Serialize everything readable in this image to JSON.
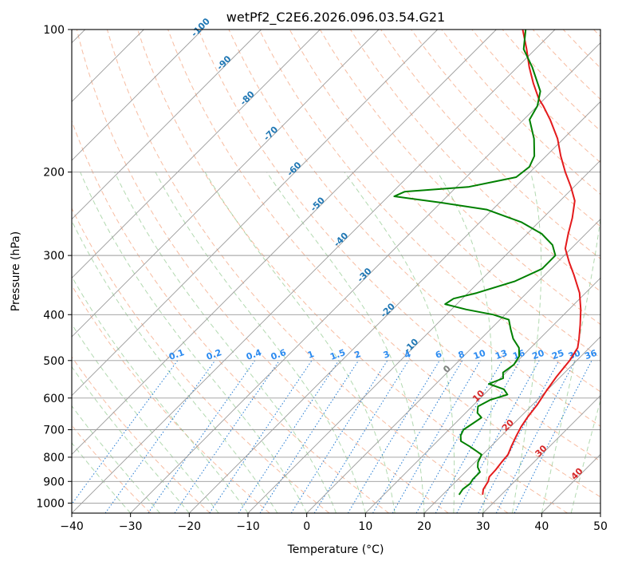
{
  "chart_data": {
    "type": "line",
    "title": "wetPf2_C2E6.2026.096.03.54.G21",
    "xlabel": "Temperature (°C)",
    "ylabel": "Pressure (hPa)",
    "xlim": [
      -40,
      50
    ],
    "ylim": [
      1050,
      100
    ],
    "y_scale": "log",
    "grid": true,
    "x_ticks": [
      "−40",
      "−30",
      "−20",
      "−10",
      "0",
      "10",
      "20",
      "30",
      "40",
      "50"
    ],
    "y_ticks": [
      "100",
      "200",
      "300",
      "400",
      "500",
      "600",
      "700",
      "800",
      "900",
      "1000"
    ],
    "dry_adiabat_labels": [
      "-100",
      "-90",
      "-80",
      "-70",
      "-60",
      "-50",
      "-40",
      "-30",
      "-20",
      "-10",
      "0",
      "10",
      "20",
      "30",
      "40"
    ],
    "mixing_ratio_labels": [
      "0.1",
      "0.2",
      "0.4",
      "0.6",
      "1",
      "1.5",
      "2",
      "3",
      "4",
      "6",
      "8",
      "10",
      "13",
      "16",
      "20",
      "25",
      "30",
      "36"
    ],
    "series": [
      {
        "name": "",
        "color": "#e41a1c",
        "points": [
          {
            "p": 960,
            "t": 26.8
          },
          {
            "p": 935,
            "t": 26.0
          },
          {
            "p": 900,
            "t": 25.5
          },
          {
            "p": 880,
            "t": 24.9
          },
          {
            "p": 850,
            "t": 24.8
          },
          {
            "p": 820,
            "t": 24.5
          },
          {
            "p": 790,
            "t": 24.3
          },
          {
            "p": 760,
            "t": 23.5
          },
          {
            "p": 720,
            "t": 22.5
          },
          {
            "p": 690,
            "t": 21.8
          },
          {
            "p": 660,
            "t": 21.3
          },
          {
            "p": 620,
            "t": 20.8
          },
          {
            "p": 580,
            "t": 20.0
          },
          {
            "p": 540,
            "t": 19.3
          },
          {
            "p": 500,
            "t": 18.8
          },
          {
            "p": 470,
            "t": 18.0
          },
          {
            "p": 450,
            "t": 16.7
          },
          {
            "p": 420,
            "t": 14.5
          },
          {
            "p": 390,
            "t": 12.0
          },
          {
            "p": 360,
            "t": 9.0
          },
          {
            "p": 330,
            "t": 5.0
          },
          {
            "p": 310,
            "t": 2.0
          },
          {
            "p": 290,
            "t": -1.0
          },
          {
            "p": 270,
            "t": -3.0
          },
          {
            "p": 250,
            "t": -5.0
          },
          {
            "p": 230,
            "t": -7.5
          },
          {
            "p": 215,
            "t": -10.5
          },
          {
            "p": 200,
            "t": -14.0
          },
          {
            "p": 185,
            "t": -17.5
          },
          {
            "p": 170,
            "t": -21.0
          },
          {
            "p": 155,
            "t": -25.5
          },
          {
            "p": 145,
            "t": -29.0
          },
          {
            "p": 140,
            "t": -31.0
          },
          {
            "p": 130,
            "t": -34.5
          },
          {
            "p": 120,
            "t": -38.0
          },
          {
            "p": 110,
            "t": -41.5
          },
          {
            "p": 100,
            "t": -45.5
          }
        ]
      },
      {
        "name": "",
        "color": "#008000",
        "points": [
          {
            "p": 960,
            "t": 22.8
          },
          {
            "p": 935,
            "t": 22.5
          },
          {
            "p": 910,
            "t": 22.8
          },
          {
            "p": 890,
            "t": 22.5
          },
          {
            "p": 860,
            "t": 22.5
          },
          {
            "p": 840,
            "t": 21.3
          },
          {
            "p": 820,
            "t": 20.5
          },
          {
            "p": 790,
            "t": 19.8
          },
          {
            "p": 760,
            "t": 16.5
          },
          {
            "p": 740,
            "t": 14.0
          },
          {
            "p": 720,
            "t": 13.0
          },
          {
            "p": 700,
            "t": 12.5
          },
          {
            "p": 680,
            "t": 13.0
          },
          {
            "p": 660,
            "t": 13.5
          },
          {
            "p": 645,
            "t": 12.0
          },
          {
            "p": 625,
            "t": 11.0
          },
          {
            "p": 605,
            "t": 12.0
          },
          {
            "p": 590,
            "t": 14.0
          },
          {
            "p": 575,
            "t": 12.5
          },
          {
            "p": 560,
            "t": 9.0
          },
          {
            "p": 545,
            "t": 10.5
          },
          {
            "p": 530,
            "t": 9.5
          },
          {
            "p": 510,
            "t": 10.0
          },
          {
            "p": 490,
            "t": 9.5
          },
          {
            "p": 470,
            "t": 8.0
          },
          {
            "p": 450,
            "t": 5.5
          },
          {
            "p": 430,
            "t": 3.5
          },
          {
            "p": 410,
            "t": 1.5
          },
          {
            "p": 400,
            "t": -2.0
          },
          {
            "p": 390,
            "t": -7.5
          },
          {
            "p": 380,
            "t": -12.0
          },
          {
            "p": 370,
            "t": -11.5
          },
          {
            "p": 360,
            "t": -8.5
          },
          {
            "p": 340,
            "t": -4.0
          },
          {
            "p": 320,
            "t": -1.5
          },
          {
            "p": 300,
            "t": -1.5
          },
          {
            "p": 285,
            "t": -3.8
          },
          {
            "p": 270,
            "t": -7.5
          },
          {
            "p": 255,
            "t": -13.0
          },
          {
            "p": 240,
            "t": -21.0
          },
          {
            "p": 232,
            "t": -30.0
          },
          {
            "p": 225,
            "t": -39.0
          },
          {
            "p": 220,
            "t": -38.0
          },
          {
            "p": 215,
            "t": -28.0
          },
          {
            "p": 205,
            "t": -21.5
          },
          {
            "p": 195,
            "t": -21.0
          },
          {
            "p": 185,
            "t": -22.0
          },
          {
            "p": 170,
            "t": -25.0
          },
          {
            "p": 155,
            "t": -29.0
          },
          {
            "p": 145,
            "t": -30.0
          },
          {
            "p": 135,
            "t": -32.0
          },
          {
            "p": 120,
            "t": -37.5
          },
          {
            "p": 110,
            "t": -42.0
          },
          {
            "p": 100,
            "t": -45.0
          }
        ]
      }
    ]
  }
}
